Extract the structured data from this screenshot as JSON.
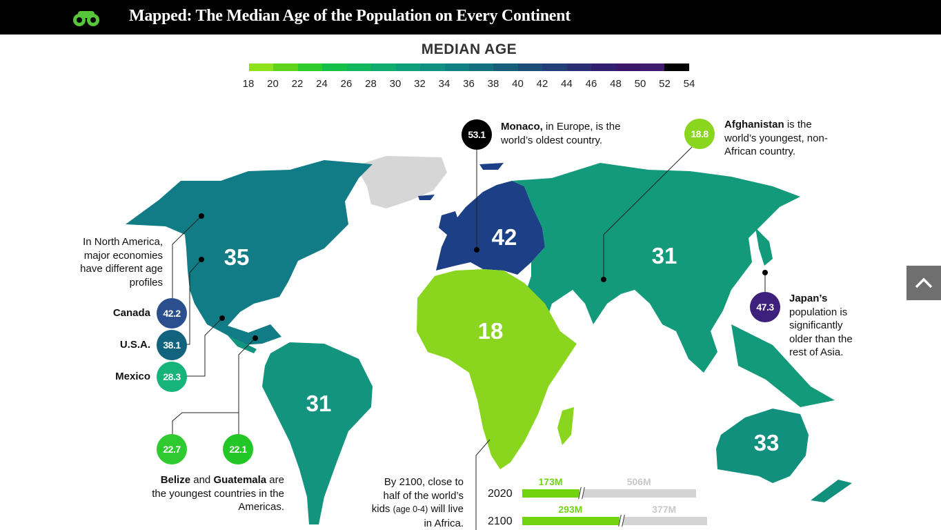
{
  "header": {
    "title": "Mapped: The Median Age of the Population on Every Continent",
    "logo_icon": "binoculars-logo-icon"
  },
  "legend": {
    "title": "MEDIAN AGE",
    "ticks": [
      "18",
      "20",
      "22",
      "24",
      "26",
      "28",
      "30",
      "32",
      "34",
      "36",
      "38",
      "40",
      "42",
      "44",
      "46",
      "48",
      "50",
      "52",
      "54"
    ],
    "colors": [
      "#8de21c",
      "#5fd41a",
      "#2ecb2f",
      "#16bf47",
      "#12b65c",
      "#10ab6f",
      "#0f9e7a",
      "#0f9080",
      "#118083",
      "#13717f",
      "#175e79",
      "#1d4d76",
      "#223e76",
      "#2a2f74",
      "#301f6e",
      "#3b176a",
      "#3d1a6b",
      "#000000"
    ]
  },
  "continents": [
    {
      "name": "North America",
      "value": "35"
    },
    {
      "name": "Europe",
      "value": "42"
    },
    {
      "name": "Asia",
      "value": "31"
    },
    {
      "name": "Africa",
      "value": "18"
    },
    {
      "name": "South America",
      "value": "31"
    },
    {
      "name": "Oceania",
      "value": "33"
    }
  ],
  "callouts": {
    "monaco": {
      "value": "53.1",
      "bold": "Monaco,",
      "text": " in Europe, is the world’s oldest country."
    },
    "afghanistan": {
      "value": "18.8",
      "bold": "Afghanistan",
      "text": " is the world’s youngest, non-African country."
    },
    "japan": {
      "value": "47.3",
      "bold": "Japan’s",
      "text": " population is significantly older than the rest of Asia."
    },
    "north_america_note": "In North America, major economies have different age profiles",
    "canada": {
      "name": "Canada",
      "value": "42.2"
    },
    "usa": {
      "name": "U.S.A.",
      "value": "38.1"
    },
    "mexico": {
      "name": "Mexico",
      "value": "28.3"
    },
    "belize": {
      "value": "22.7"
    },
    "guatemala": {
      "value": "22.1"
    },
    "belize_guatemala_note": {
      "bold1": "Belize",
      "and": " and ",
      "bold2": "Guatemala",
      "text": " are the youngest countries in the Americas."
    },
    "africa_note": {
      "pre": "By 2100, close to half of the world’s kids ",
      "small": "(age 0-4)",
      "post": " will live in Africa."
    }
  },
  "africa_kids": [
    {
      "year": "2020",
      "africa_label": "173M",
      "rest_label": "506M",
      "africa_millions": 173,
      "rest_millions": 506
    },
    {
      "year": "2100",
      "africa_label": "293M",
      "rest_label": "377M",
      "africa_millions": 293,
      "rest_millions": 377
    }
  ],
  "colors": {
    "africa": "#8ad61f",
    "asia": "#139a7a",
    "europe": "#1c3f86",
    "north_america": "#127c86",
    "south_america": "#12947f",
    "oceania": "#12907e",
    "greenland": "#d6d6d6"
  }
}
